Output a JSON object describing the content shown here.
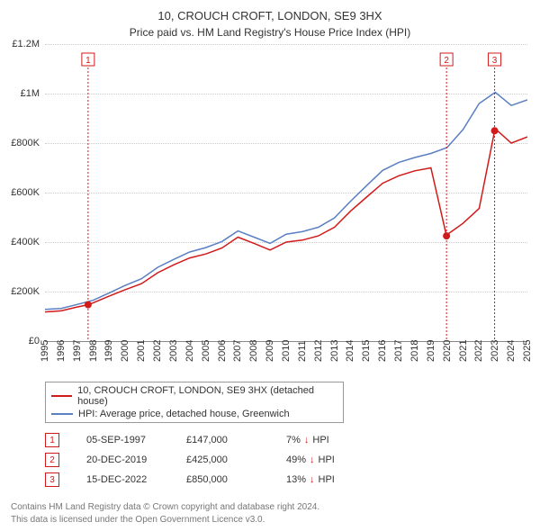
{
  "title": "10, CROUCH CROFT, LONDON, SE9 3HX",
  "subtitle": "Price paid vs. HM Land Registry's House Price Index (HPI)",
  "colors": {
    "property_line": "#d11a1a",
    "hpi_line": "#5a7fc2",
    "grid": "#cccccc",
    "axis": "#888888",
    "text": "#333333",
    "footer": "#777777",
    "bg": "#ffffff"
  },
  "chart": {
    "x_min": 1995,
    "x_max": 2025,
    "y_min": 0,
    "y_max": 1200000,
    "x_ticks": [
      1995,
      1996,
      1997,
      1998,
      1999,
      2000,
      2001,
      2002,
      2003,
      2004,
      2005,
      2006,
      2007,
      2008,
      2009,
      2010,
      2011,
      2012,
      2013,
      2014,
      2015,
      2016,
      2017,
      2018,
      2019,
      2020,
      2021,
      2022,
      2023,
      2024,
      2025
    ],
    "y_ticks": [
      {
        "v": 0,
        "label": "£0"
      },
      {
        "v": 200000,
        "label": "£200K"
      },
      {
        "v": 400000,
        "label": "£400K"
      },
      {
        "v": 600000,
        "label": "£600K"
      },
      {
        "v": 800000,
        "label": "£800K"
      },
      {
        "v": 1000000,
        "label": "£1M"
      },
      {
        "v": 1200000,
        "label": "£1.2M"
      }
    ],
    "hpi_series": [
      [
        1995,
        128000
      ],
      [
        1996,
        132000
      ],
      [
        1997,
        148000
      ],
      [
        1998,
        165000
      ],
      [
        1999,
        195000
      ],
      [
        2000,
        225000
      ],
      [
        2001,
        252000
      ],
      [
        2002,
        298000
      ],
      [
        2003,
        330000
      ],
      [
        2004,
        360000
      ],
      [
        2005,
        378000
      ],
      [
        2006,
        402000
      ],
      [
        2007,
        445000
      ],
      [
        2008,
        420000
      ],
      [
        2009,
        395000
      ],
      [
        2010,
        432000
      ],
      [
        2011,
        442000
      ],
      [
        2012,
        460000
      ],
      [
        2013,
        498000
      ],
      [
        2014,
        565000
      ],
      [
        2015,
        628000
      ],
      [
        2016,
        690000
      ],
      [
        2017,
        722000
      ],
      [
        2018,
        742000
      ],
      [
        2019,
        758000
      ],
      [
        2020,
        782000
      ],
      [
        2021,
        855000
      ],
      [
        2022,
        960000
      ],
      [
        2023,
        1005000
      ],
      [
        2024,
        952000
      ],
      [
        2025,
        975000
      ]
    ],
    "property_series": [
      [
        1995,
        118000
      ],
      [
        1996,
        122000
      ],
      [
        1997,
        138000
      ],
      [
        1997.68,
        147000
      ],
      [
        1998,
        155000
      ],
      [
        1999,
        182000
      ],
      [
        2000,
        208000
      ],
      [
        2001,
        232000
      ],
      [
        2002,
        276000
      ],
      [
        2003,
        308000
      ],
      [
        2004,
        336000
      ],
      [
        2005,
        352000
      ],
      [
        2006,
        376000
      ],
      [
        2007,
        420000
      ],
      [
        2008,
        395000
      ],
      [
        2009,
        368000
      ],
      [
        2010,
        400000
      ],
      [
        2011,
        408000
      ],
      [
        2012,
        425000
      ],
      [
        2013,
        460000
      ],
      [
        2014,
        525000
      ],
      [
        2015,
        582000
      ],
      [
        2016,
        638000
      ],
      [
        2017,
        668000
      ],
      [
        2018,
        688000
      ],
      [
        2019,
        700000
      ],
      [
        2019.97,
        425000
      ],
      [
        2020,
        430000
      ],
      [
        2021,
        476000
      ],
      [
        2022,
        536000
      ],
      [
        2022.96,
        850000
      ],
      [
        2023,
        858000
      ],
      [
        2024,
        800000
      ],
      [
        2025,
        825000
      ]
    ],
    "sale_markers": [
      {
        "idx": "1",
        "year": 1997.68,
        "value": 147000
      },
      {
        "idx": "2",
        "year": 2019.97,
        "value": 425000
      },
      {
        "idx": "3",
        "year": 2022.96,
        "value": 850000
      }
    ]
  },
  "legend": [
    {
      "color": "#d11a1a",
      "label": "10, CROUCH CROFT, LONDON, SE9 3HX (detached house)"
    },
    {
      "color": "#5a7fc2",
      "label": "HPI: Average price, detached house, Greenwich"
    }
  ],
  "sales": [
    {
      "idx": "1",
      "date": "05-SEP-1997",
      "price": "£147,000",
      "diff": "7%",
      "arrow": "↓",
      "suffix": "HPI"
    },
    {
      "idx": "2",
      "date": "20-DEC-2019",
      "price": "£425,000",
      "diff": "49%",
      "arrow": "↓",
      "suffix": "HPI"
    },
    {
      "idx": "3",
      "date": "15-DEC-2022",
      "price": "£850,000",
      "diff": "13%",
      "arrow": "↓",
      "suffix": "HPI"
    }
  ],
  "footer1": "Contains HM Land Registry data © Crown copyright and database right 2024.",
  "footer2": "This data is licensed under the Open Government Licence v3.0."
}
